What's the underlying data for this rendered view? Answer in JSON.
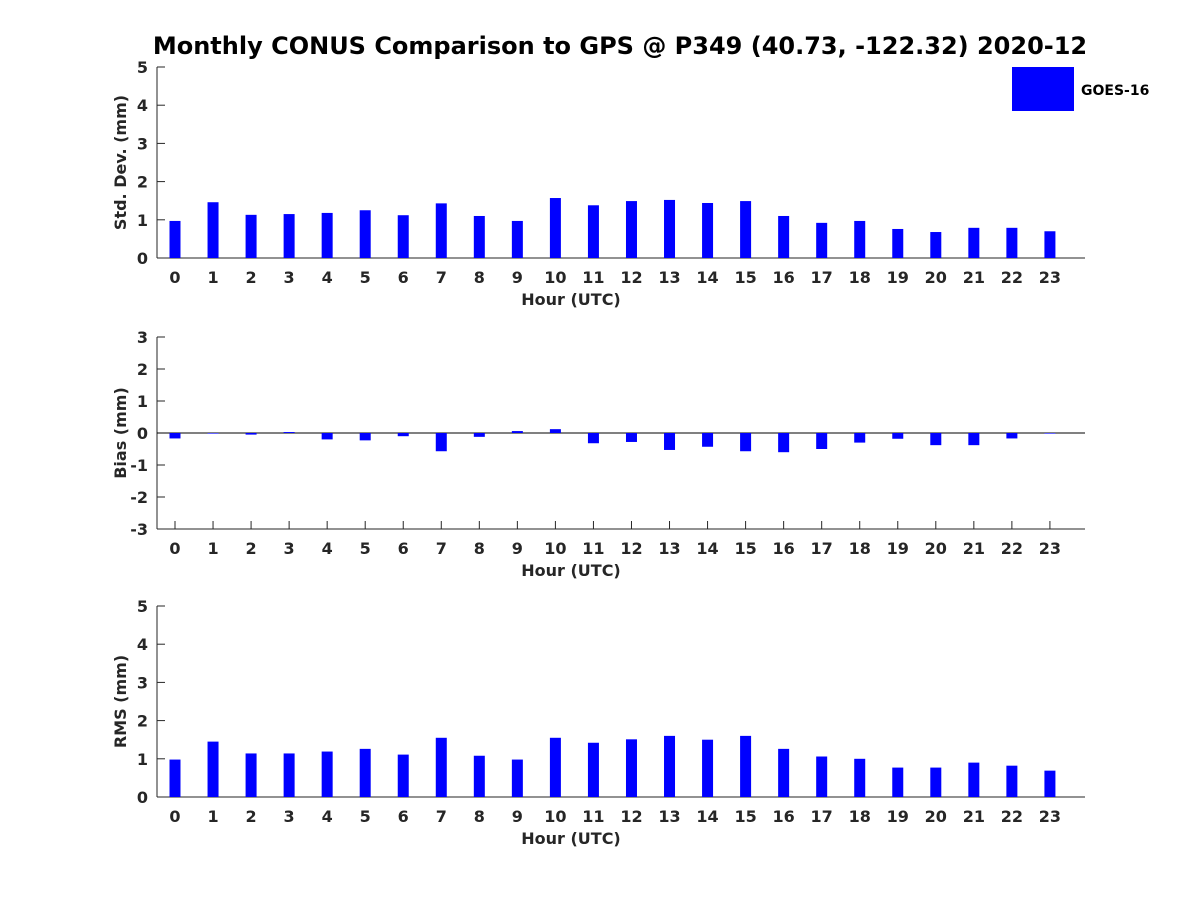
{
  "chart_data": {
    "title": "Monthly CONUS Comparison to GPS @ P349 (40.73, -122.32) 2020-12",
    "legend": {
      "label": "GOES-16",
      "color": "#0000ff",
      "placement": "top-right"
    },
    "bar_color": "#0000ff",
    "panels": [
      {
        "type": "bar",
        "name": "std",
        "ylabel": "Std. Dev. (mm)",
        "xlabel": "Hour (UTC)",
        "ylim": [
          0,
          5
        ],
        "yticks": [
          0,
          1,
          2,
          3,
          4,
          5
        ],
        "zero_line": false,
        "categories": [
          "0",
          "1",
          "2",
          "3",
          "4",
          "5",
          "6",
          "7",
          "8",
          "9",
          "10",
          "11",
          "12",
          "13",
          "14",
          "15",
          "16",
          "17",
          "18",
          "19",
          "20",
          "21",
          "22",
          "23"
        ],
        "series": [
          {
            "name": "GOES-16",
            "values": [
              0.97,
              1.46,
              1.13,
              1.15,
              1.18,
              1.25,
              1.12,
              1.43,
              1.1,
              0.97,
              1.57,
              1.38,
              1.49,
              1.52,
              1.44,
              1.49,
              1.1,
              0.92,
              0.97,
              0.76,
              0.68,
              0.79,
              0.79,
              0.7
            ]
          }
        ]
      },
      {
        "type": "bar",
        "name": "bias",
        "ylabel": "Bias (mm)",
        "xlabel": "Hour (UTC)",
        "ylim": [
          -3,
          3
        ],
        "yticks": [
          -3,
          -2,
          -1,
          0,
          1,
          2,
          3
        ],
        "zero_line": true,
        "categories": [
          "0",
          "1",
          "2",
          "3",
          "4",
          "5",
          "6",
          "7",
          "8",
          "9",
          "10",
          "11",
          "12",
          "13",
          "14",
          "15",
          "16",
          "17",
          "18",
          "19",
          "20",
          "21",
          "22",
          "23"
        ],
        "series": [
          {
            "name": "GOES-16",
            "values": [
              -0.17,
              -0.01,
              -0.05,
              0.03,
              -0.2,
              -0.23,
              -0.1,
              -0.57,
              -0.12,
              0.06,
              0.12,
              -0.32,
              -0.28,
              -0.53,
              -0.43,
              -0.57,
              -0.6,
              -0.5,
              -0.3,
              -0.18,
              -0.38,
              -0.38,
              -0.17,
              -0.01
            ]
          }
        ]
      },
      {
        "type": "bar",
        "name": "rms",
        "ylabel": "RMS (mm)",
        "xlabel": "Hour (UTC)",
        "ylim": [
          0,
          5
        ],
        "yticks": [
          0,
          1,
          2,
          3,
          4,
          5
        ],
        "zero_line": false,
        "categories": [
          "0",
          "1",
          "2",
          "3",
          "4",
          "5",
          "6",
          "7",
          "8",
          "9",
          "10",
          "11",
          "12",
          "13",
          "14",
          "15",
          "16",
          "17",
          "18",
          "19",
          "20",
          "21",
          "22",
          "23"
        ],
        "series": [
          {
            "name": "GOES-16",
            "values": [
              0.98,
              1.45,
              1.14,
              1.14,
              1.19,
              1.26,
              1.11,
              1.55,
              1.08,
              0.98,
              1.55,
              1.42,
              1.51,
              1.6,
              1.5,
              1.6,
              1.26,
              1.06,
              1.0,
              0.77,
              0.77,
              0.9,
              0.82,
              0.69
            ]
          }
        ]
      }
    ]
  }
}
